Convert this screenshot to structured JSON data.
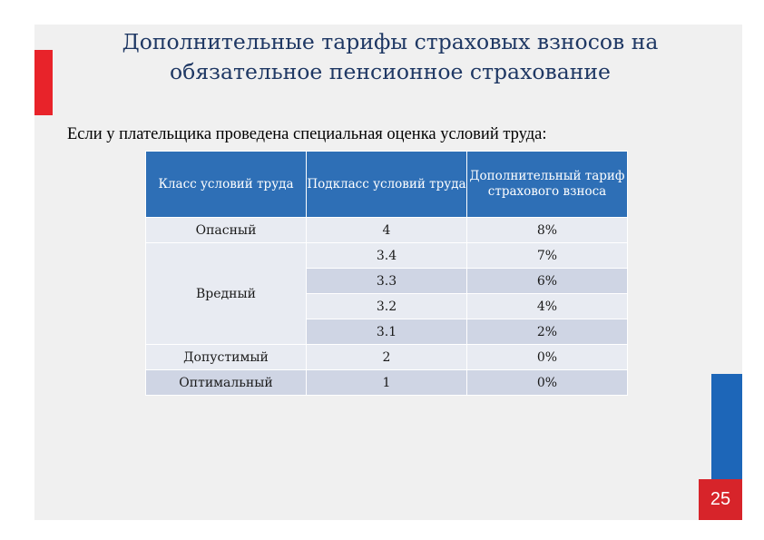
{
  "slide": {
    "title_line1": "Дополнительные тарифы страховых взносов на",
    "title_line2": "обязательное пенсионное страхование",
    "subtitle": "Если у плательщика проведена специальная оценка условий труда:",
    "page_number": "25",
    "colors": {
      "title": "#1f3864",
      "header_bg": "#2e6fb6",
      "row_light": "#e8ebf2",
      "row_dark": "#cfd5e4",
      "accent_red": "#e8232a",
      "accent_blue": "#1d66b8"
    }
  },
  "table": {
    "headers": [
      "Класс условий труда",
      "Подкласс условий труда",
      "Дополнительный тариф страхового взноса"
    ],
    "groups": [
      {
        "class": "Опасный",
        "rows": [
          {
            "subclass": "4",
            "rate": "8%"
          }
        ]
      },
      {
        "class": "Вредный",
        "rows": [
          {
            "subclass": "3.4",
            "rate": "7%"
          },
          {
            "subclass": "3.3",
            "rate": "6%"
          },
          {
            "subclass": "3.2",
            "rate": "4%"
          },
          {
            "subclass": "3.1",
            "rate": "2%"
          }
        ]
      },
      {
        "class": "Допустимый",
        "rows": [
          {
            "subclass": "2",
            "rate": "0%"
          }
        ]
      },
      {
        "class": "Оптимальный",
        "rows": [
          {
            "subclass": "1",
            "rate": "0%"
          }
        ]
      }
    ]
  }
}
